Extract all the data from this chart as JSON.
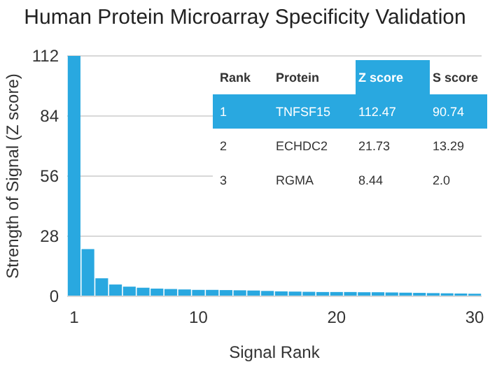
{
  "chart_data": {
    "type": "bar",
    "title": "Human Protein Microarray Specificity Validation",
    "xlabel": "Signal Rank",
    "ylabel": "Strength of Signal (Z score)",
    "x": [
      1,
      2,
      3,
      4,
      5,
      6,
      7,
      8,
      9,
      10,
      11,
      12,
      13,
      14,
      15,
      16,
      17,
      18,
      19,
      20,
      21,
      22,
      23,
      24,
      25,
      26,
      27,
      28,
      29,
      30
    ],
    "values": [
      112,
      22,
      8.4,
      5.5,
      4.5,
      4,
      3.6,
      3.4,
      3.2,
      3,
      3,
      2.9,
      2.8,
      2.7,
      2.5,
      2.3,
      2.2,
      2.1,
      2,
      2,
      2,
      1.9,
      1.9,
      1.8,
      1.7,
      1.6,
      1.5,
      1.4,
      1.3,
      1.2
    ],
    "color": "#29a8e0",
    "xlim": [
      0.5,
      30.5
    ],
    "xticks": [
      1,
      10,
      20,
      30
    ],
    "ylim": [
      0,
      112
    ],
    "yticks": [
      0,
      28,
      56,
      84,
      112
    ],
    "grid": "y",
    "annotations": [
      "Rank",
      "Protein",
      "Z score",
      "S score",
      "1",
      "TNFSF15",
      "112.47",
      "90.74",
      "2",
      "ECHDC2",
      "21.73",
      "13.29",
      "3",
      "RGMA",
      "8.44",
      "2.0"
    ]
  }
}
